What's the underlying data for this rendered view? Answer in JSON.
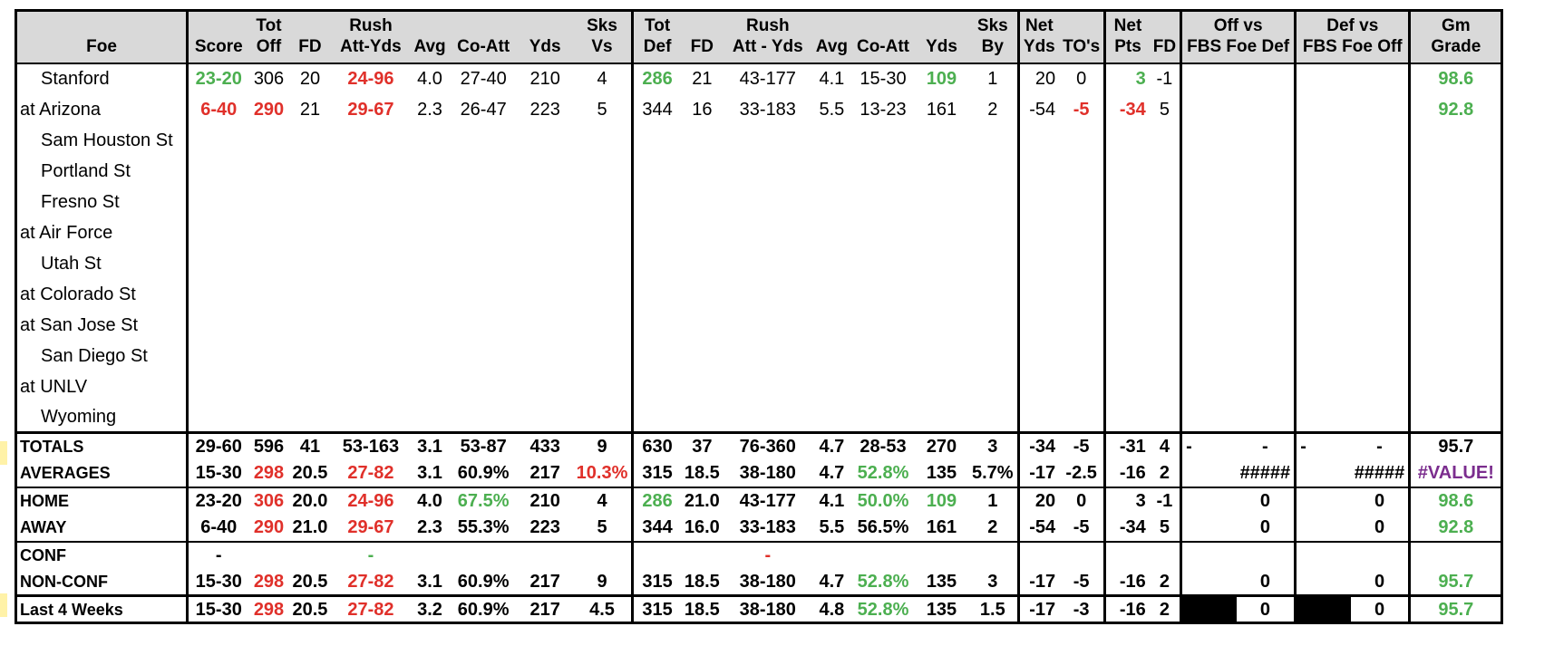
{
  "header_row1": [
    "",
    "",
    "Tot",
    "",
    "Rush",
    "",
    "",
    "",
    "Sks",
    "Tot",
    "",
    "Rush",
    "",
    "",
    "",
    "Sks",
    "Net",
    "",
    "Net",
    "",
    "Off vs",
    "Def vs",
    "Gm"
  ],
  "header_row2": [
    "Foe",
    "Score",
    "Off",
    "FD",
    "Att-Yds",
    "Avg",
    "Co-Att",
    "Yds",
    "Vs",
    "Def",
    "FD",
    "Att - Yds",
    "Avg",
    "Co-Att",
    "Yds",
    "By",
    "Yds",
    "TO's",
    "Pts",
    "FD",
    "FBS Foe Def",
    "FBS Foe Off",
    "Grade"
  ],
  "games": [
    {
      "foe": "Stanford",
      "home": true,
      "score": "23-20",
      "tot_off": "306",
      "fd": "20",
      "rush": "24-96",
      "avg": "4.0",
      "co_att": "27-40",
      "yds": "210",
      "sks_vs": "4",
      "tot_def": "286",
      "dfd": "21",
      "drush": "43-177",
      "davg": "4.1",
      "dco_att": "15-30",
      "dyds": "109",
      "sks_by": "1",
      "net_yds": "20",
      "net_to": "0",
      "net_pts": "3",
      "net_fd": "-1",
      "off_vs": "",
      "def_vs": "",
      "grade": "98.6"
    },
    {
      "foe": "at Arizona",
      "home": false,
      "score": "6-40",
      "tot_off": "290",
      "fd": "21",
      "rush": "29-67",
      "avg": "2.3",
      "co_att": "26-47",
      "yds": "223",
      "sks_vs": "5",
      "tot_def": "344",
      "dfd": "16",
      "drush": "33-183",
      "davg": "5.5",
      "dco_att": "13-23",
      "dyds": "161",
      "sks_by": "2",
      "net_yds": "-54",
      "net_to": "-5",
      "net_pts": "-34",
      "net_fd": "5",
      "off_vs": "",
      "def_vs": "",
      "grade": "92.8"
    },
    {
      "foe": "Sam Houston St",
      "home": true
    },
    {
      "foe": "Portland St",
      "home": true
    },
    {
      "foe": "Fresno St",
      "home": true
    },
    {
      "foe": "at Air Force",
      "home": false
    },
    {
      "foe": "Utah St",
      "home": true
    },
    {
      "foe": "at Colorado St",
      "home": false
    },
    {
      "foe": "at San Jose St",
      "home": false
    },
    {
      "foe": "San Diego St",
      "home": true
    },
    {
      "foe": "at UNLV",
      "home": false
    },
    {
      "foe": "Wyoming",
      "home": true
    }
  ],
  "summary": [
    {
      "label": "TOTALS",
      "cells": [
        "29-60",
        "596",
        "41",
        "53-163",
        "3.1",
        "53-87",
        "433",
        "9",
        "630",
        "37",
        "76-360",
        "4.7",
        "28-53",
        "270",
        "3",
        "-34",
        "-5",
        "-31",
        "4",
        "-",
        "-",
        "-",
        "-",
        "95.7"
      ]
    },
    {
      "label": "AVERAGES",
      "cells": [
        "15-30",
        "298",
        "20.5",
        "27-82",
        "3.1",
        "60.9%",
        "217",
        "10.3%",
        "315",
        "18.5",
        "38-180",
        "4.7",
        "52.8%",
        "135",
        "5.7%",
        "-17",
        "-2.5",
        "-16",
        "2",
        "",
        "#####",
        "",
        "#####",
        "#VALUE!"
      ]
    },
    {
      "label": "HOME",
      "cells": [
        "23-20",
        "306",
        "20.0",
        "24-96",
        "4.0",
        "67.5%",
        "210",
        "4",
        "286",
        "21.0",
        "43-177",
        "4.1",
        "50.0%",
        "109",
        "1",
        "20",
        "0",
        "3",
        "-1",
        "",
        "0",
        "",
        "0",
        "98.6"
      ]
    },
    {
      "label": "AWAY",
      "cells": [
        "6-40",
        "290",
        "21.0",
        "29-67",
        "2.3",
        "55.3%",
        "223",
        "5",
        "344",
        "16.0",
        "33-183",
        "5.5",
        "56.5%",
        "161",
        "2",
        "-54",
        "-5",
        "-34",
        "5",
        "",
        "0",
        "",
        "0",
        "92.8"
      ]
    },
    {
      "label": "CONF",
      "cells": [
        "-",
        "",
        "",
        "-",
        "",
        "",
        "",
        "",
        "",
        "",
        "-",
        "",
        "",
        "",
        "",
        "",
        "",
        "",
        "",
        "",
        "",
        "",
        "",
        ""
      ]
    },
    {
      "label": "NON-CONF",
      "cells": [
        "15-30",
        "298",
        "20.5",
        "27-82",
        "3.1",
        "60.9%",
        "217",
        "9",
        "315",
        "18.5",
        "38-180",
        "4.7",
        "52.8%",
        "135",
        "3",
        "-17",
        "-5",
        "-16",
        "2",
        "",
        "0",
        "",
        "0",
        "95.7"
      ]
    },
    {
      "label": "Last 4 Weeks",
      "cells": [
        "15-30",
        "298",
        "20.5",
        "27-82",
        "3.2",
        "60.9%",
        "217",
        "4.5",
        "315",
        "18.5",
        "38-180",
        "4.8",
        "52.8%",
        "135",
        "1.5",
        "-17",
        "-3",
        "-16",
        "2",
        "",
        "0",
        "",
        "0",
        "95.7"
      ]
    }
  ],
  "colors": {
    "green": "#4caf50",
    "red": "#e0302a",
    "purple": "#7b2d8e"
  }
}
